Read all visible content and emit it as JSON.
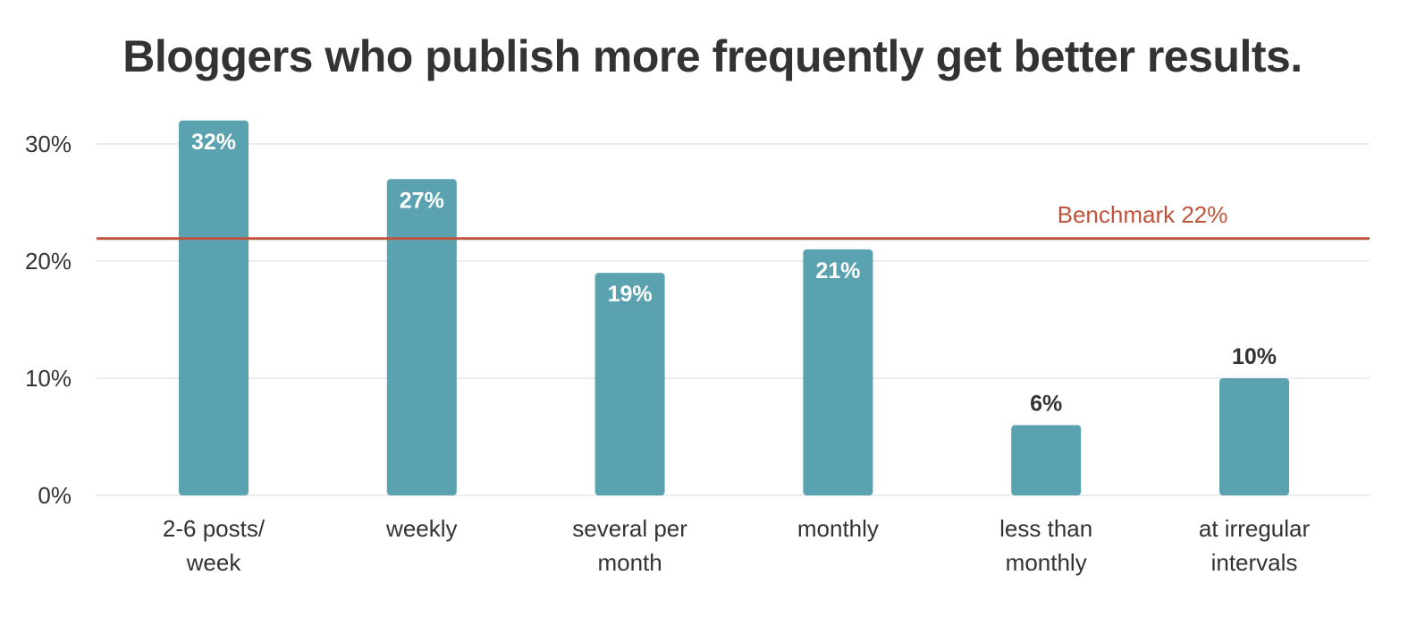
{
  "chart_data": {
    "type": "bar",
    "title": "Bloggers who publish more frequently get better results.",
    "categories": [
      [
        "2-6 posts/",
        "week"
      ],
      [
        "weekly"
      ],
      [
        "several per",
        "month"
      ],
      [
        "monthly"
      ],
      [
        "less than",
        "monthly"
      ],
      [
        "at irregular",
        "intervals"
      ]
    ],
    "values": [
      32,
      27,
      19,
      21,
      6,
      10
    ],
    "value_labels": [
      "32%",
      "27%",
      "19%",
      "21%",
      "6%",
      "10%"
    ],
    "ylim": [
      0,
      30
    ],
    "yticks": [
      0,
      10,
      20,
      30
    ],
    "ytick_labels": [
      "0%",
      "10%",
      "20%",
      "30%"
    ],
    "grid": true,
    "benchmark": {
      "value": 22,
      "label": "Benchmark 22%",
      "color": "#c0533b"
    },
    "colors": {
      "bar": "#5ba2b0",
      "grid": "#e6e6e6",
      "text": "#333333"
    }
  }
}
